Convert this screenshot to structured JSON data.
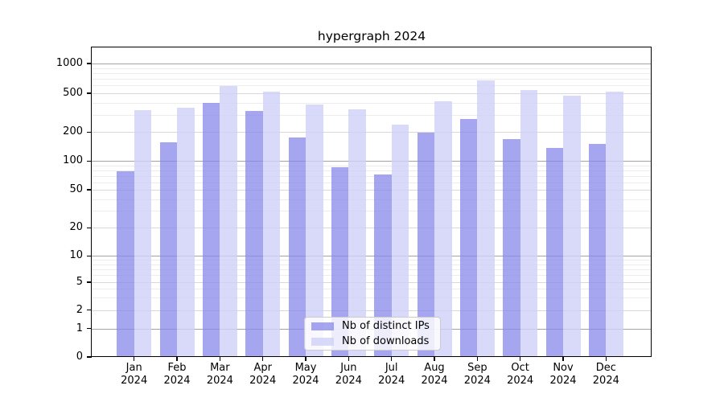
{
  "title": "hypergraph 2024",
  "colors": {
    "ips_bar": "rgba(135,135,235,0.75)",
    "downloads_bar": "rgba(207,207,247,0.8)",
    "major_grid": "#a3a3a3",
    "labeled_minor_grid": "#d8d8d8",
    "minor_grid": "#ececec",
    "axis": "#000000",
    "text": "#000000",
    "legend_border": "#cccccc",
    "legend_bg": "rgba(255,255,255,0.8)"
  },
  "legend": {
    "items": [
      {
        "label": "Nb of distinct IPs",
        "series": "ips"
      },
      {
        "label": "Nb of downloads",
        "series": "downloads"
      }
    ]
  },
  "chart_data": {
    "type": "bar",
    "title": "hypergraph 2024",
    "categories": [
      "Jan 2024",
      "Feb 2024",
      "Mar 2024",
      "Apr 2024",
      "May 2024",
      "Jun 2024",
      "Jul 2024",
      "Aug 2024",
      "Sep 2024",
      "Oct 2024",
      "Nov 2024",
      "Dec 2024"
    ],
    "series": [
      {
        "name": "Nb of distinct IPs",
        "values": [
          78,
          157,
          400,
          330,
          176,
          86,
          73,
          196,
          275,
          168,
          137,
          150
        ]
      },
      {
        "name": "Nb of downloads",
        "values": [
          335,
          357,
          590,
          520,
          385,
          343,
          240,
          415,
          670,
          540,
          470,
          515
        ]
      }
    ],
    "xlabel": "",
    "ylabel": "",
    "y_axis": {
      "scale": "symlog",
      "tick_values": [
        0,
        1,
        2,
        5,
        10,
        20,
        50,
        100,
        200,
        500,
        1000
      ],
      "tick_labels": [
        "0",
        "1",
        "2",
        "5",
        "10",
        "20",
        "50",
        "100",
        "200",
        "500",
        "1000"
      ],
      "ylim": [
        0,
        1400
      ]
    },
    "grid": "on",
    "legend_position": "lower center"
  }
}
